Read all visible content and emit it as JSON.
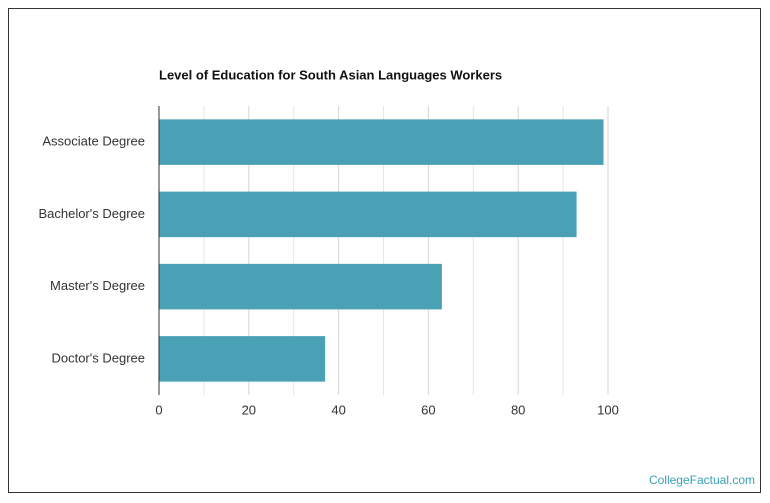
{
  "chart_data": {
    "type": "barh",
    "title": "Level of Education for South Asian Languages Workers",
    "categories": [
      "Associate Degree",
      "Bachelor's Degree",
      "Master's Degree",
      "Doctor's Degree"
    ],
    "values": [
      99,
      93,
      63,
      37
    ],
    "color": "#4aa0b5",
    "xlim": [
      0,
      100
    ],
    "xticks": [
      0,
      20,
      40,
      60,
      80,
      100
    ],
    "minor_xticks": [
      10,
      30,
      50,
      70,
      90
    ],
    "grid": true
  },
  "footer": {
    "source": "CollegeFactual.com"
  }
}
